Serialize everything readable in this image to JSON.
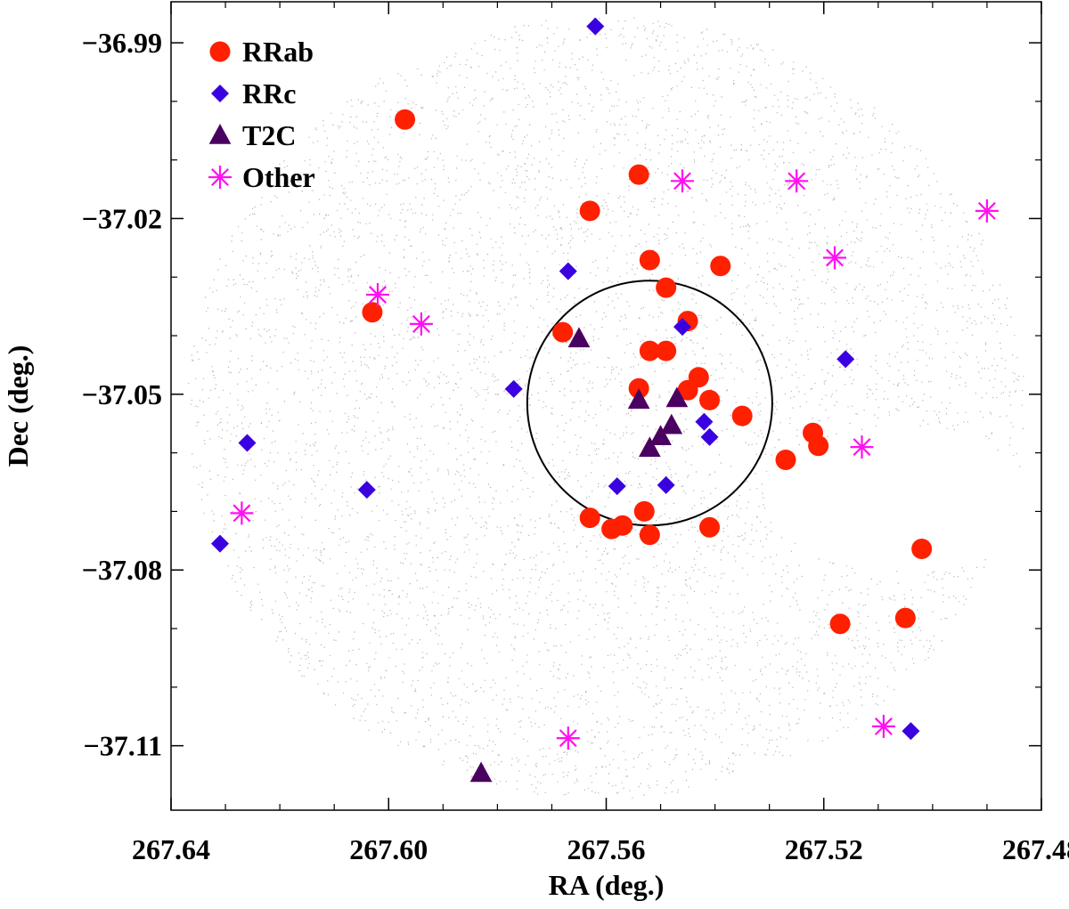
{
  "chart_data": {
    "type": "scatter",
    "title": "",
    "xlabel": "RA (deg.)",
    "ylabel": "Dec (deg.)",
    "xlim": [
      267.64,
      267.48
    ],
    "ylim": [
      -37.121,
      -36.983
    ],
    "x_ticks": [
      267.64,
      267.6,
      267.56,
      267.52,
      267.48
    ],
    "x_tick_labels": [
      "267.64",
      "267.60",
      "267.56",
      "267.52",
      "267.48"
    ],
    "y_ticks": [
      -36.99,
      -37.02,
      -37.05,
      -37.08,
      -37.11
    ],
    "y_tick_labels": [
      "−36.99",
      "−37.02",
      "−37.05",
      "−37.08",
      "−37.11"
    ],
    "grid": false,
    "legend_position": "top-left",
    "background_field": {
      "description": "dense field of faint grey star points",
      "color": "#b4b4b4"
    },
    "cluster_circle": {
      "center": [
        267.552,
        -37.0515
      ],
      "radius_deg": 0.0209,
      "color": "#000000"
    },
    "series": [
      {
        "name": "RRab",
        "marker": "circle",
        "color": "#ff2000",
        "points": [
          [
            267.597,
            -37.0031
          ],
          [
            267.554,
            -37.0125
          ],
          [
            267.563,
            -37.0187
          ],
          [
            267.552,
            -37.0271
          ],
          [
            267.539,
            -37.0281
          ],
          [
            267.549,
            -37.0318
          ],
          [
            267.568,
            -37.0394
          ],
          [
            267.545,
            -37.0375
          ],
          [
            267.603,
            -37.036
          ],
          [
            267.552,
            -37.0426
          ],
          [
            267.549,
            -37.0426
          ],
          [
            267.543,
            -37.0471
          ],
          [
            267.545,
            -37.0493
          ],
          [
            267.554,
            -37.049
          ],
          [
            267.541,
            -37.051
          ],
          [
            267.535,
            -37.0537
          ],
          [
            267.522,
            -37.0566
          ],
          [
            267.521,
            -37.0588
          ],
          [
            267.527,
            -37.0612
          ],
          [
            267.563,
            -37.0711
          ],
          [
            267.559,
            -37.073
          ],
          [
            267.557,
            -37.0724
          ],
          [
            267.553,
            -37.07
          ],
          [
            267.552,
            -37.074
          ],
          [
            267.541,
            -37.0727
          ],
          [
            267.502,
            -37.0764
          ],
          [
            267.517,
            -37.0892
          ],
          [
            267.505,
            -37.0882
          ]
        ]
      },
      {
        "name": "RRc",
        "marker": "diamond",
        "color": "#3a00e0",
        "points": [
          [
            267.562,
            -36.9872
          ],
          [
            267.567,
            -37.029
          ],
          [
            267.577,
            -37.0491
          ],
          [
            267.546,
            -37.0385
          ],
          [
            267.516,
            -37.044
          ],
          [
            267.542,
            -37.0547
          ],
          [
            267.541,
            -37.0573
          ],
          [
            267.549,
            -37.0655
          ],
          [
            267.558,
            -37.0657
          ],
          [
            267.604,
            -37.0663
          ],
          [
            267.626,
            -37.0583
          ],
          [
            267.631,
            -37.0755
          ],
          [
            267.504,
            -37.1075
          ]
        ]
      },
      {
        "name": "T2C",
        "marker": "triangle",
        "color": "#4a0060",
        "points": [
          [
            267.565,
            -37.0405
          ],
          [
            267.554,
            -37.051
          ],
          [
            267.547,
            -37.0507
          ],
          [
            267.548,
            -37.0553
          ],
          [
            267.55,
            -37.0572
          ],
          [
            267.552,
            -37.0592
          ],
          [
            267.583,
            -37.1147
          ]
        ]
      },
      {
        "name": "Other",
        "marker": "asterisk",
        "color": "#ff10f0",
        "points": [
          [
            267.546,
            -37.0136
          ],
          [
            267.525,
            -37.0136
          ],
          [
            267.49,
            -37.0187
          ],
          [
            267.518,
            -37.0267
          ],
          [
            267.602,
            -37.033
          ],
          [
            267.594,
            -37.038
          ],
          [
            267.513,
            -37.059
          ],
          [
            267.627,
            -37.0703
          ],
          [
            267.567,
            -37.1087
          ],
          [
            267.509,
            -37.1067
          ]
        ]
      }
    ]
  }
}
